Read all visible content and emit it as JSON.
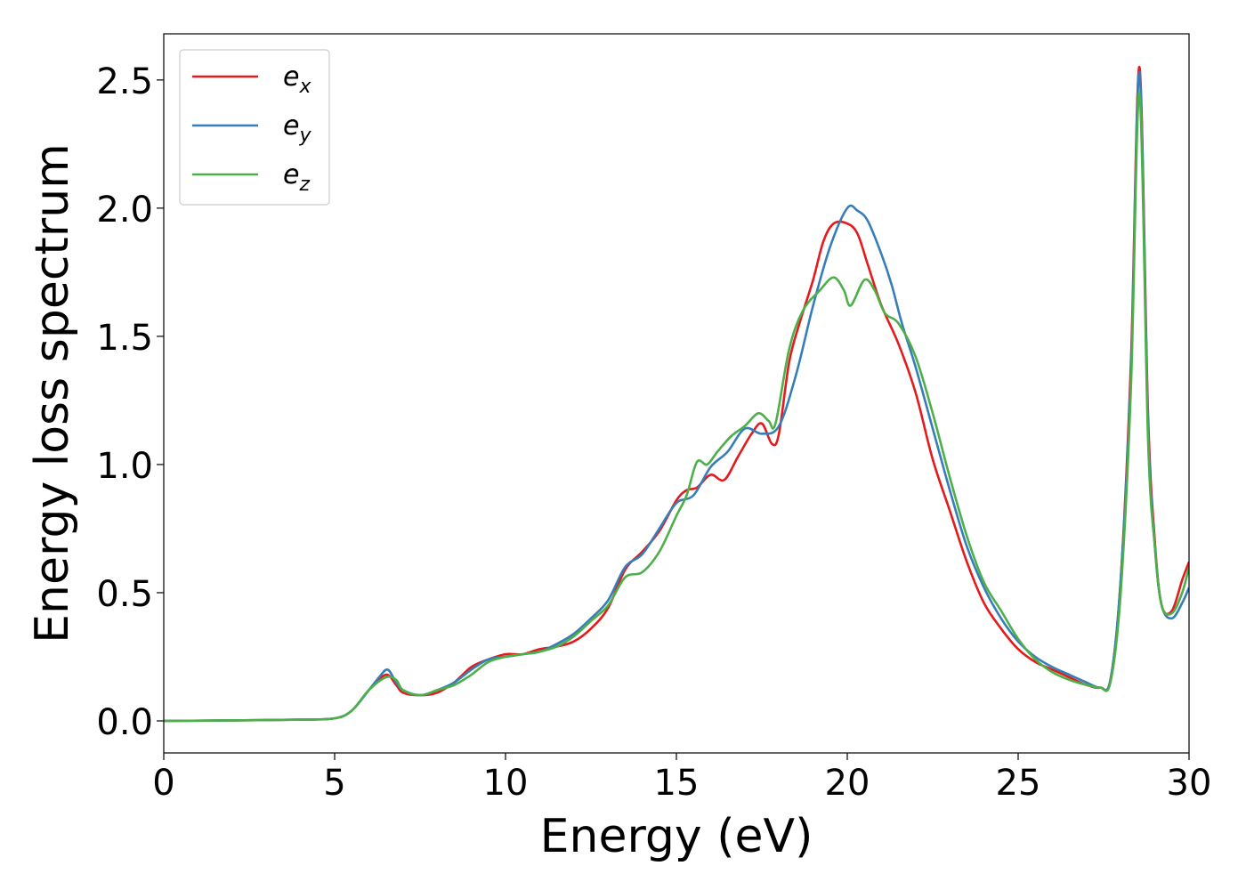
{
  "chart_data": {
    "type": "line",
    "title": "",
    "xlabel": "Energy (eV)",
    "ylabel": "Energy loss spectrum",
    "xlim": [
      0,
      30
    ],
    "ylim": [
      -0.125,
      2.68
    ],
    "xticks": [
      {
        "value": 0,
        "label": "0"
      },
      {
        "value": 5,
        "label": "5"
      },
      {
        "value": 10,
        "label": "10"
      },
      {
        "value": 15,
        "label": "15"
      },
      {
        "value": 20,
        "label": "20"
      },
      {
        "value": 25,
        "label": "25"
      },
      {
        "value": 30,
        "label": "30"
      }
    ],
    "yticks": [
      {
        "value": 0.0,
        "label": "0.0"
      },
      {
        "value": 0.5,
        "label": "0.5"
      },
      {
        "value": 1.0,
        "label": "1.0"
      },
      {
        "value": 1.5,
        "label": "1.5"
      },
      {
        "value": 2.0,
        "label": "2.0"
      },
      {
        "value": 2.5,
        "label": "2.5"
      }
    ],
    "grid": false,
    "legend_position": "top-left",
    "series": [
      {
        "name": "e_x",
        "legend_base": "e",
        "legend_sub": "x",
        "color": "#e41a1c",
        "x": [
          0,
          2,
          4,
          5,
          5.5,
          6,
          6.5,
          6.8,
          7,
          7.5,
          8,
          8.5,
          9,
          9.5,
          10,
          10.5,
          11,
          11.5,
          12,
          12.5,
          13,
          13.5,
          14,
          14.5,
          15,
          15.3,
          15.6,
          16,
          16.4,
          16.8,
          17.2,
          17.5,
          17.8,
          18,
          18.3,
          18.6,
          19,
          19.3,
          19.6,
          20,
          20.3,
          20.6,
          21,
          21.5,
          22,
          22.5,
          23,
          23.5,
          24,
          24.5,
          25,
          25.5,
          26,
          26.5,
          27,
          27.4,
          27.7,
          28,
          28.3,
          28.55,
          28.8,
          29,
          29.2,
          29.5,
          29.8,
          30
        ],
        "y": [
          0,
          0.002,
          0.005,
          0.01,
          0.04,
          0.12,
          0.18,
          0.14,
          0.11,
          0.1,
          0.11,
          0.15,
          0.21,
          0.24,
          0.26,
          0.26,
          0.28,
          0.29,
          0.31,
          0.36,
          0.44,
          0.59,
          0.66,
          0.74,
          0.86,
          0.9,
          0.91,
          0.96,
          0.94,
          1.03,
          1.12,
          1.16,
          1.08,
          1.12,
          1.4,
          1.55,
          1.72,
          1.87,
          1.94,
          1.94,
          1.9,
          1.78,
          1.62,
          1.47,
          1.28,
          1.02,
          0.82,
          0.62,
          0.46,
          0.36,
          0.28,
          0.23,
          0.2,
          0.17,
          0.14,
          0.13,
          0.16,
          0.55,
          1.4,
          2.55,
          1.2,
          0.7,
          0.45,
          0.43,
          0.55,
          0.62
        ]
      },
      {
        "name": "e_y",
        "legend_base": "e",
        "legend_sub": "y",
        "color": "#377eb8",
        "x": [
          0,
          2,
          4,
          5,
          5.5,
          6,
          6.3,
          6.55,
          6.8,
          7,
          7.5,
          8,
          8.5,
          9,
          9.5,
          10,
          10.5,
          11,
          11.5,
          12,
          12.5,
          13,
          13.5,
          14,
          14.5,
          15,
          15.5,
          16,
          16.5,
          17,
          17.5,
          18,
          18.5,
          19,
          19.5,
          20,
          20.3,
          20.6,
          21,
          21.3,
          21.6,
          22,
          22.5,
          23,
          23.5,
          24,
          24.5,
          25,
          25.5,
          26,
          26.5,
          27,
          27.4,
          27.7,
          28,
          28.3,
          28.55,
          28.8,
          29,
          29.2,
          29.5,
          29.8,
          30
        ],
        "y": [
          0,
          0.002,
          0.005,
          0.01,
          0.04,
          0.12,
          0.17,
          0.2,
          0.15,
          0.12,
          0.1,
          0.12,
          0.15,
          0.2,
          0.24,
          0.25,
          0.26,
          0.27,
          0.3,
          0.34,
          0.4,
          0.47,
          0.6,
          0.65,
          0.75,
          0.85,
          0.88,
          0.99,
          1.05,
          1.14,
          1.12,
          1.15,
          1.35,
          1.62,
          1.85,
          2.0,
          1.99,
          1.95,
          1.82,
          1.7,
          1.55,
          1.38,
          1.14,
          0.9,
          0.68,
          0.52,
          0.4,
          0.31,
          0.25,
          0.21,
          0.18,
          0.15,
          0.13,
          0.16,
          0.55,
          1.35,
          2.53,
          1.15,
          0.68,
          0.45,
          0.4,
          0.46,
          0.52
        ]
      },
      {
        "name": "e_z",
        "legend_base": "e",
        "legend_sub": "z",
        "color": "#4daf4a",
        "x": [
          0,
          2,
          4,
          5,
          5.5,
          6,
          6.5,
          6.8,
          7,
          7.5,
          8,
          8.5,
          9,
          9.5,
          10,
          10.5,
          11,
          11.5,
          12,
          12.5,
          13,
          13.5,
          14,
          14.5,
          15,
          15.3,
          15.6,
          15.9,
          16.2,
          16.6,
          17,
          17.4,
          17.7,
          17.9,
          18.3,
          18.7,
          19.2,
          19.6,
          19.9,
          20.1,
          20.5,
          20.8,
          21.1,
          21.5,
          22,
          22.5,
          23,
          23.5,
          24,
          24.5,
          25,
          25.5,
          26,
          26.5,
          27,
          27.4,
          27.7,
          28,
          28.3,
          28.55,
          28.8,
          29,
          29.2,
          29.5,
          29.8,
          30
        ],
        "y": [
          0,
          0.002,
          0.005,
          0.01,
          0.04,
          0.12,
          0.17,
          0.16,
          0.12,
          0.1,
          0.12,
          0.14,
          0.18,
          0.23,
          0.25,
          0.26,
          0.27,
          0.29,
          0.33,
          0.39,
          0.45,
          0.56,
          0.58,
          0.66,
          0.8,
          0.88,
          1.01,
          1.0,
          1.05,
          1.11,
          1.15,
          1.2,
          1.17,
          1.16,
          1.45,
          1.6,
          1.68,
          1.73,
          1.68,
          1.62,
          1.72,
          1.68,
          1.59,
          1.55,
          1.42,
          1.2,
          0.95,
          0.72,
          0.54,
          0.43,
          0.32,
          0.24,
          0.19,
          0.16,
          0.14,
          0.13,
          0.15,
          0.5,
          1.3,
          2.45,
          1.1,
          0.68,
          0.45,
          0.42,
          0.5,
          0.6
        ]
      }
    ]
  }
}
